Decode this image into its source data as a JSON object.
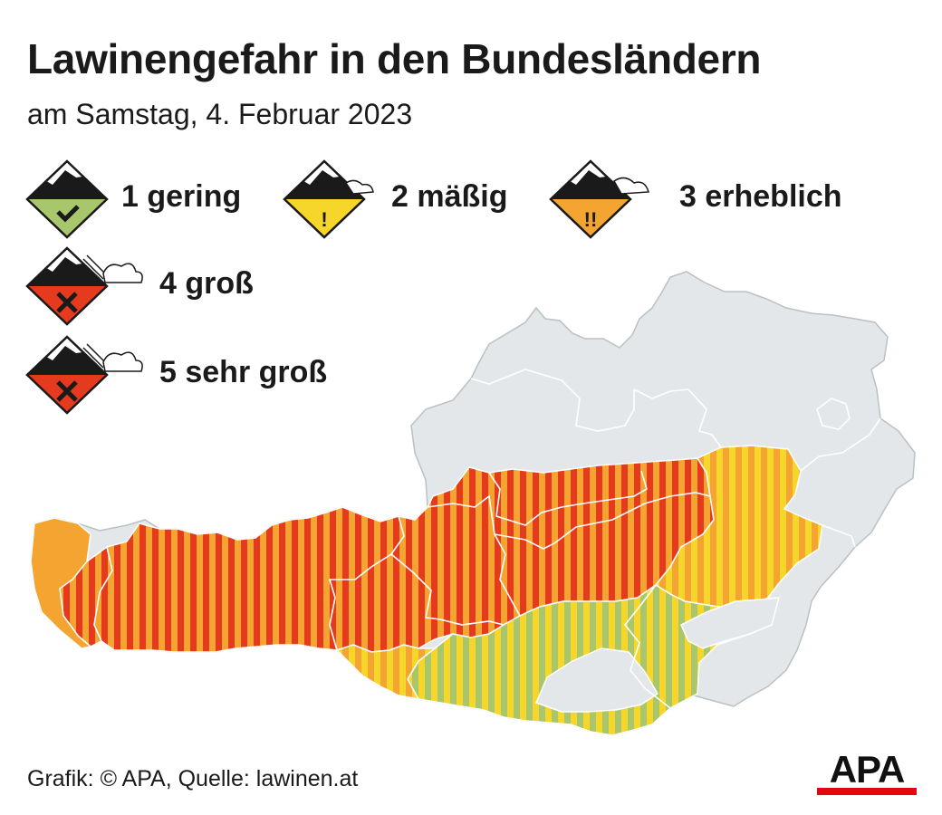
{
  "title": "Lawinengefahr in den Bundesländern",
  "subtitle": "am Samstag, 4. Februar 2023",
  "legend": [
    {
      "level": "1 gering",
      "color": "#a8c66c",
      "symbol": "check-icon"
    },
    {
      "level": "2 mäßig",
      "color": "#f7d62b",
      "symbol": "exclamation-icon",
      "glyph": "!"
    },
    {
      "level": "3 erheblich",
      "color": "#f4a531",
      "symbol": "double-exclamation-icon",
      "glyph": "!!"
    },
    {
      "level": "4 groß",
      "color": "#e63a1f",
      "symbol": "cross-icon"
    },
    {
      "level": "5 sehr groß",
      "color": "#e63a1f",
      "symbol": "cross-icon"
    }
  ],
  "map": {
    "region": "Österreich",
    "base_color": "#e3e7e9",
    "border_color": "#ffffff",
    "zones": [
      {
        "zone": "west-tyrol-salzburg-upper-austria",
        "levels": [
          "4 groß",
          "3 erheblich"
        ],
        "stripe_colors": [
          "#e63a1f",
          "#f4a531"
        ]
      },
      {
        "zone": "vorarlberg-west",
        "levels": [
          "3 erheblich"
        ],
        "stripe_colors": [
          "#f4a531"
        ]
      },
      {
        "zone": "north-east-alps",
        "levels": [
          "3 erheblich",
          "2 mäßig"
        ],
        "stripe_colors": [
          "#f4a531",
          "#f7d62b"
        ]
      },
      {
        "zone": "carinthia-styria-south",
        "levels": [
          "2 mäßig",
          "1 gering"
        ],
        "stripe_colors": [
          "#f7d62b",
          "#a8c66c"
        ]
      },
      {
        "zone": "east-tyrol-south",
        "levels": [
          "3 erheblich",
          "2 mäßig"
        ],
        "stripe_colors": [
          "#f4a531",
          "#f7d62b"
        ]
      }
    ]
  },
  "source": "Grafik: © APA, Quelle: lawinen.at",
  "logo": {
    "text": "APA",
    "bar_color": "#e30613"
  }
}
